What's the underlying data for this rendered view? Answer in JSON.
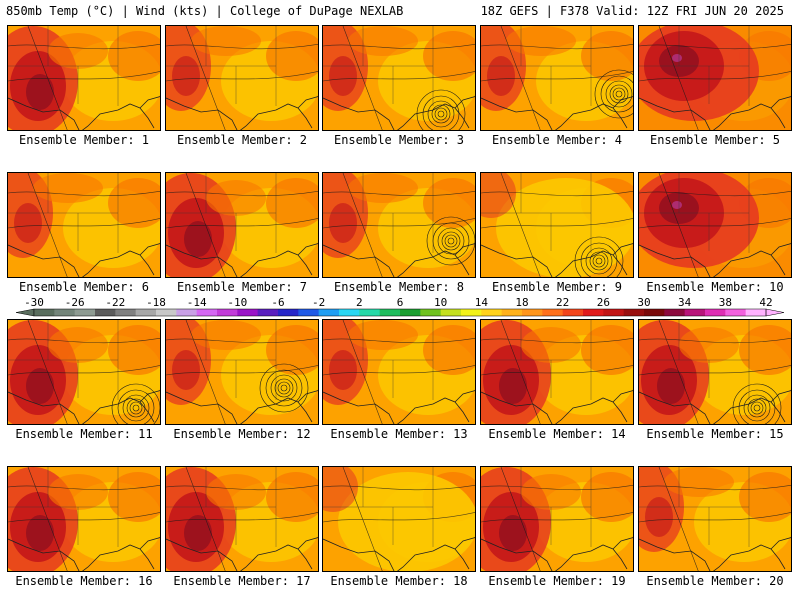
{
  "header": {
    "title_left": "850mb Temp (°C) | Wind (kts) | College of DuPage NEXLAB",
    "title_right": "18Z GEFS | F378 Valid: 12Z FRI JUN 20 2025"
  },
  "member_label_prefix": "Ensemble Member: ",
  "members": [
    {
      "id": "1",
      "heat": "hot-west",
      "low": false
    },
    {
      "id": "2",
      "heat": "warm",
      "low": false
    },
    {
      "id": "3",
      "heat": "warm",
      "low": true
    },
    {
      "id": "4",
      "heat": "warm",
      "low": true
    },
    {
      "id": "5",
      "heat": "very-hot",
      "low": false
    },
    {
      "id": "6",
      "heat": "warm",
      "low": false
    },
    {
      "id": "7",
      "heat": "hot-west",
      "low": false
    },
    {
      "id": "8",
      "heat": "warm",
      "low": true
    },
    {
      "id": "9",
      "heat": "cool",
      "low": true
    },
    {
      "id": "10",
      "heat": "very-hot",
      "low": false
    },
    {
      "id": "11",
      "heat": "hot-west",
      "low": true
    },
    {
      "id": "12",
      "heat": "warm",
      "low": true
    },
    {
      "id": "13",
      "heat": "warm",
      "low": false
    },
    {
      "id": "14",
      "heat": "hot-west",
      "low": false
    },
    {
      "id": "15",
      "heat": "hot-west",
      "low": true
    },
    {
      "id": "16",
      "heat": "hot-west",
      "low": false
    },
    {
      "id": "17",
      "heat": "hot-west",
      "low": false
    },
    {
      "id": "18",
      "heat": "cool",
      "low": false
    },
    {
      "id": "19",
      "heat": "hot-west",
      "low": false
    },
    {
      "id": "20",
      "heat": "warm",
      "low": false
    }
  ],
  "colorbar": {
    "labels": [
      "-30",
      "-26",
      "-22",
      "-18",
      "-14",
      "-10",
      "-6",
      "-2",
      "2",
      "6",
      "10",
      "14",
      "18",
      "22",
      "26",
      "30",
      "34",
      "38",
      "42"
    ],
    "colors": [
      "#5a6e5e",
      "#74857a",
      "#8e9b92",
      "#5c5c5c",
      "#808080",
      "#a7a7a7",
      "#c9c9c9",
      "#c9a0e6",
      "#d467f2",
      "#c23cd9",
      "#9a14c7",
      "#5a1fbf",
      "#2626c9",
      "#1f59e6",
      "#1f9ef2",
      "#29d6f2",
      "#26d9a8",
      "#1fbd5e",
      "#1a9e30",
      "#6fc21f",
      "#c4e01f",
      "#f2f21a",
      "#ffd21a",
      "#ffb21a",
      "#ff951a",
      "#ff701a",
      "#f2451a",
      "#e01a1a",
      "#c21414",
      "#990f0f",
      "#7a0a0a",
      "#8c0a3d",
      "#b8147a",
      "#de2eb3",
      "#f261de",
      "#ffb2ff"
    ]
  },
  "colors": {
    "yellow": "#fcc800",
    "orange": "#fda200",
    "deep_orange": "#f87800",
    "red": "#e53a1f",
    "dark_red": "#c2141a",
    "maroon": "#8f0f1f",
    "magenta": "#b0307a"
  }
}
